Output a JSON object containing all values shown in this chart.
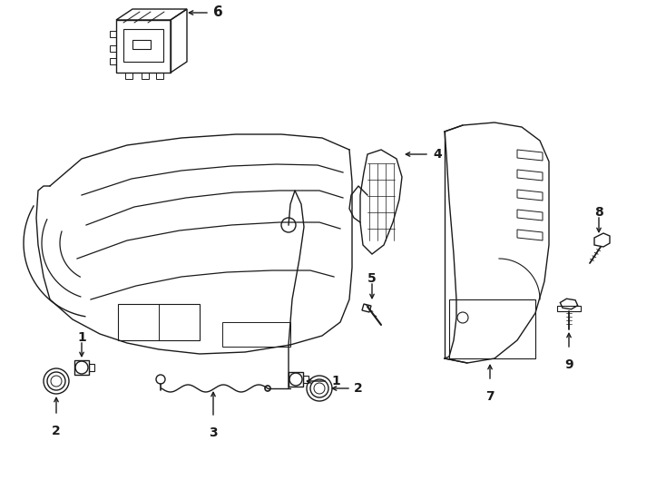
{
  "bg_color": "#ffffff",
  "line_color": "#1a1a1a",
  "lw": 1.0,
  "fig_width": 7.34,
  "fig_height": 5.4
}
